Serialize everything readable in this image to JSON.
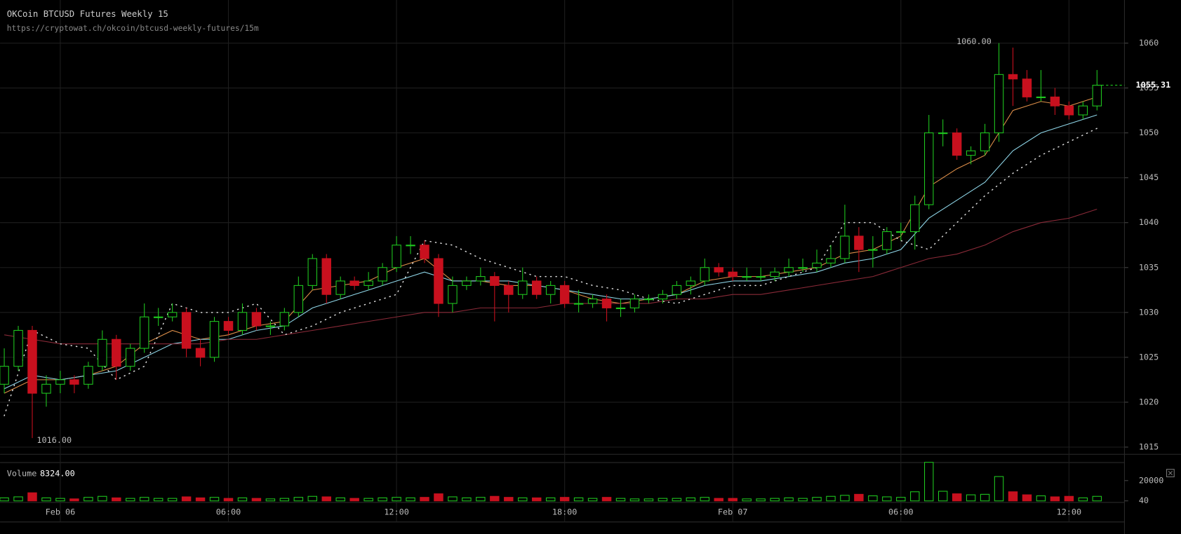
{
  "chart_data": {
    "type": "candlestick",
    "title": "OKCoin BTCUSD Futures Weekly 15",
    "subtitle": "https://cryptowat.ch/okcoin/btcusd-weekly-futures/15m",
    "x": [
      -2,
      -1.5,
      -1,
      -0.5,
      0,
      0.5,
      1,
      1.5,
      2,
      2.5,
      3,
      3.5,
      4,
      4.5,
      5,
      5.5,
      6,
      6.5,
      7,
      7.5,
      8,
      8.5,
      9,
      9.5,
      10,
      10.5,
      11,
      11.5,
      12,
      12.5,
      13,
      13.5,
      14,
      14.5,
      15,
      15.5,
      16,
      16.5,
      17,
      17.5,
      18,
      18.5,
      19,
      19.5,
      20,
      20.5,
      21,
      21.5,
      22,
      22.5,
      23,
      23.5,
      24,
      24.5,
      25,
      25.5,
      26,
      26.5,
      27,
      27.5,
      28,
      28.5,
      29,
      29.5,
      30,
      30.5,
      31,
      31.5,
      32,
      32.5,
      33,
      33.5,
      34,
      34.5,
      35,
      35.5,
      36,
      36.5,
      37
    ],
    "open": [
      1022,
      1024,
      1028,
      1021,
      1022,
      1022.5,
      1022,
      1024,
      1027,
      1024,
      1026,
      1029.5,
      1029.5,
      1030,
      1026,
      1025,
      1029,
      1028,
      1030,
      1028.5,
      1028.5,
      1030,
      1033,
      1036,
      1032,
      1033.5,
      1033,
      1033.5,
      1035,
      1037.5,
      1037.5,
      1036,
      1031,
      1033,
      1033.5,
      1034,
      1033,
      1032,
      1033.5,
      1032,
      1033,
      1031,
      1031,
      1031.5,
      1030.5,
      1030.5,
      1031.5,
      1031.5,
      1032,
      1033,
      1033.5,
      1035,
      1034.5,
      1034,
      1034,
      1034,
      1034.5,
      1035,
      1035,
      1035.5,
      1036,
      1038.5,
      1037,
      1037,
      1039,
      1039,
      1042,
      1050,
      1050,
      1047.5,
      1048,
      1050,
      1056.5,
      1056,
      1054,
      1054,
      1053,
      1052,
      1053
    ],
    "high": [
      1026,
      1028.5,
      1028.5,
      1023,
      1023.5,
      1023,
      1024.5,
      1028,
      1027.5,
      1026.5,
      1031,
      1030.5,
      1031,
      1030.5,
      1027,
      1029.5,
      1029.5,
      1031,
      1030.5,
      1029,
      1030.5,
      1034,
      1036.5,
      1036.5,
      1034,
      1034,
      1034.5,
      1035.5,
      1038.5,
      1038.5,
      1038,
      1036.5,
      1034,
      1034,
      1035,
      1034.5,
      1033.5,
      1035,
      1034,
      1033.5,
      1033.5,
      1032.5,
      1032,
      1032,
      1031.5,
      1032,
      1032,
      1032.5,
      1033.5,
      1034,
      1036,
      1035.5,
      1035,
      1035,
      1035,
      1035,
      1036,
      1036,
      1037,
      1037.5,
      1042,
      1039.5,
      1038.5,
      1039.5,
      1040,
      1043,
      1052,
      1051.5,
      1050.5,
      1048.5,
      1051,
      1060,
      1059.5,
      1057,
      1057,
      1055,
      1053.5,
      1053.5,
      1057
    ],
    "low": [
      1021,
      1023.5,
      1016,
      1019.5,
      1021,
      1021,
      1021.5,
      1023.5,
      1022.5,
      1023.5,
      1025.5,
      1028.5,
      1029,
      1025,
      1024,
      1024.5,
      1027.5,
      1027.5,
      1028,
      1027.5,
      1028,
      1029.5,
      1032.5,
      1031,
      1031.5,
      1032.5,
      1032.5,
      1033,
      1034.5,
      1036.5,
      1035.5,
      1029.5,
      1030,
      1032.5,
      1033,
      1029,
      1030,
      1031.5,
      1031.5,
      1031,
      1030.5,
      1030,
      1030.5,
      1029,
      1029.5,
      1030,
      1031,
      1031,
      1031.5,
      1032,
      1033,
      1034,
      1033.5,
      1033.5,
      1033.5,
      1033.5,
      1034,
      1034.5,
      1034.5,
      1035,
      1035.5,
      1034.5,
      1035,
      1036.5,
      1038,
      1037,
      1041.5,
      1048.5,
      1047,
      1046.5,
      1047.5,
      1049,
      1053,
      1053.5,
      1053.5,
      1052,
      1051.5,
      1051.5,
      1052.5
    ],
    "close": [
      1024,
      1028,
      1021,
      1022,
      1022.5,
      1022,
      1024,
      1027,
      1024,
      1026,
      1029.5,
      1029.5,
      1030,
      1026,
      1025,
      1029,
      1028,
      1030,
      1028.5,
      1028.5,
      1030,
      1033,
      1036,
      1032,
      1033.5,
      1033,
      1033.5,
      1035,
      1037.5,
      1037.5,
      1036,
      1031,
      1033,
      1033.5,
      1034,
      1033,
      1032,
      1033.5,
      1032,
      1033,
      1031,
      1031,
      1031.5,
      1030.5,
      1030.5,
      1031.5,
      1031.5,
      1032,
      1033,
      1033.5,
      1035,
      1034.5,
      1034,
      1034,
      1034,
      1034.5,
      1035,
      1035,
      1035.5,
      1036,
      1038.5,
      1037,
      1037,
      1039,
      1039,
      1042,
      1050,
      1050,
      1047.5,
      1048,
      1050,
      1056.5,
      1056,
      1054,
      1054,
      1053,
      1052,
      1053,
      1055.31
    ],
    "up_color": "#1fc71f",
    "down_color": "#c8101e",
    "xlim": [
      -2.15,
      37.98
    ],
    "xticks": [
      {
        "value": 0,
        "label": "Feb 06"
      },
      {
        "value": 6,
        "label": "06:00"
      },
      {
        "value": 12,
        "label": "12:00"
      },
      {
        "value": 18,
        "label": "18:00"
      },
      {
        "value": 24,
        "label": "Feb 07"
      },
      {
        "value": 30,
        "label": "06:00"
      },
      {
        "value": 36,
        "label": "12:00"
      }
    ],
    "ylim": [
      1014.2,
      1064.8
    ],
    "yticks": [
      1015,
      1020,
      1025,
      1030,
      1035,
      1040,
      1045,
      1050,
      1055,
      1060
    ],
    "grid": true,
    "line_x": [
      -2,
      -1,
      0,
      1,
      2,
      3,
      4,
      5,
      6,
      7,
      8,
      9,
      10,
      11,
      12,
      13,
      14,
      15,
      16,
      17,
      18,
      19,
      20,
      21,
      22,
      23,
      24,
      25,
      26,
      27,
      28,
      29,
      30,
      31,
      32,
      33,
      34,
      35,
      36,
      37
    ],
    "lines": [
      {
        "color": "#e0904a",
        "style": "solid",
        "values": [
          1021,
          1022.5,
          1022.5,
          1023,
          1024,
          1026.5,
          1028,
          1027,
          1027.5,
          1028.5,
          1029,
          1032.5,
          1033,
          1033.5,
          1035,
          1036,
          1033.5,
          1033.5,
          1033,
          1033,
          1032.5,
          1031.5,
          1031,
          1031.5,
          1032,
          1033.5,
          1034,
          1034,
          1034.5,
          1035,
          1036.5,
          1037,
          1038.5,
          1044,
          1046,
          1047.5,
          1052.5,
          1053.5,
          1053,
          1054
        ]
      },
      {
        "color": "#8fd6e8",
        "style": "solid",
        "values": [
          1021.5,
          1023,
          1022.5,
          1023,
          1023.5,
          1025,
          1026.5,
          1027,
          1027,
          1028,
          1028.5,
          1030.5,
          1031.5,
          1032.5,
          1033.5,
          1034.5,
          1033.5,
          1033.5,
          1033.5,
          1033,
          1032.5,
          1032,
          1031.5,
          1031.5,
          1032,
          1033,
          1033.5,
          1033.5,
          1034,
          1034.5,
          1035.5,
          1036,
          1037,
          1040.5,
          1042.5,
          1044.5,
          1048,
          1050,
          1051,
          1052
        ]
      },
      {
        "color": "#8a2a38",
        "style": "solid",
        "values": [
          1027.5,
          1027,
          1026.5,
          1026.5,
          1026.5,
          1026.5,
          1026.5,
          1026.5,
          1027,
          1027,
          1027.5,
          1028,
          1028.5,
          1029,
          1029.5,
          1030,
          1030,
          1030.5,
          1030.5,
          1030.5,
          1031,
          1031,
          1031,
          1031,
          1031.5,
          1031.5,
          1032,
          1032,
          1032.5,
          1033,
          1033.5,
          1034,
          1035,
          1036,
          1036.5,
          1037.5,
          1039,
          1040,
          1040.5,
          1041.5
        ]
      },
      {
        "color": "#dddddd",
        "style": "dotted",
        "values": [
          1018.5,
          1028,
          1026.5,
          1026,
          1022.5,
          1024,
          1031,
          1030,
          1030,
          1031,
          1027.5,
          1028.5,
          1030,
          1031,
          1032,
          1038,
          1037.5,
          1036,
          1035,
          1034,
          1034,
          1033,
          1032.5,
          1031.5,
          1031,
          1032,
          1033,
          1033,
          1034,
          1035,
          1040,
          1040,
          1038,
          1037,
          1040,
          1043,
          1045.5,
          1047.5,
          1049,
          1050.5
        ]
      }
    ],
    "high_label": {
      "value": 1060,
      "label": "1060.00"
    },
    "low_label": {
      "value": 1016,
      "label": "1016.00"
    },
    "last_price": {
      "value": 1055.31,
      "label": "1055.31"
    },
    "volume": {
      "label": "Volume",
      "current": {
        "value": 8324,
        "label": "8324.00"
      },
      "values": [
        3000,
        4000,
        8000,
        3000,
        2500,
        2000,
        3500,
        4500,
        3000,
        2500,
        3500,
        2500,
        2500,
        4000,
        3000,
        3500,
        2500,
        3000,
        2500,
        2000,
        2500,
        3500,
        4500,
        4000,
        3000,
        2500,
        2500,
        3000,
        3500,
        3000,
        3500,
        7000,
        4000,
        3000,
        3500,
        4500,
        3500,
        3000,
        3000,
        3000,
        3500,
        3000,
        2500,
        3500,
        2500,
        2000,
        2000,
        2500,
        2500,
        3000,
        3500,
        2500,
        2500,
        2000,
        2000,
        2500,
        3000,
        2500,
        3500,
        4500,
        5500,
        6500,
        5000,
        4000,
        3500,
        9000,
        38000,
        9500,
        7000,
        6000,
        6500,
        24000,
        9000,
        6000,
        5000,
        4000,
        4500,
        3000,
        4500
      ],
      "ylim": [
        0,
        40000
      ],
      "yticks": [
        40,
        20000
      ]
    }
  }
}
